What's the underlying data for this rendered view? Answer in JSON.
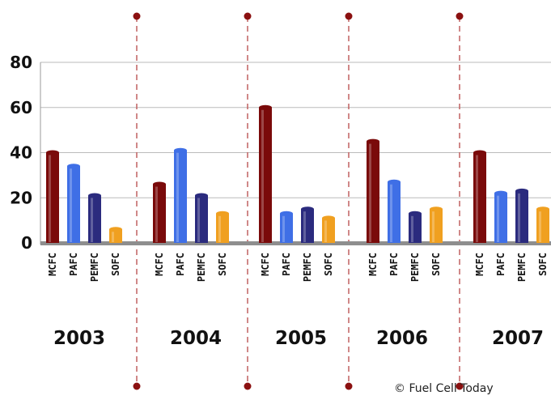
{
  "chart_data": {
    "type": "bar",
    "groups": [
      "2003",
      "2004",
      "2005",
      "2006",
      "2007"
    ],
    "categories": [
      "MCFC",
      "PAFC",
      "PEMFC",
      "SOFC"
    ],
    "values": [
      [
        40,
        34,
        21,
        6
      ],
      [
        26,
        41,
        21,
        13
      ],
      [
        60,
        13,
        15,
        11
      ],
      [
        45,
        27,
        13,
        15
      ],
      [
        40,
        22,
        23,
        15
      ]
    ],
    "yticks": [
      0,
      20,
      40,
      60,
      80
    ],
    "ylim": [
      0,
      80
    ],
    "grid": true,
    "colors": {
      "MCFC": "#7a0a0a",
      "PAFC": "#3f6fe6",
      "PEMFC": "#2b2b7e",
      "SOFC": "#f0a020"
    }
  },
  "credit": "© Fuel Cell Today"
}
